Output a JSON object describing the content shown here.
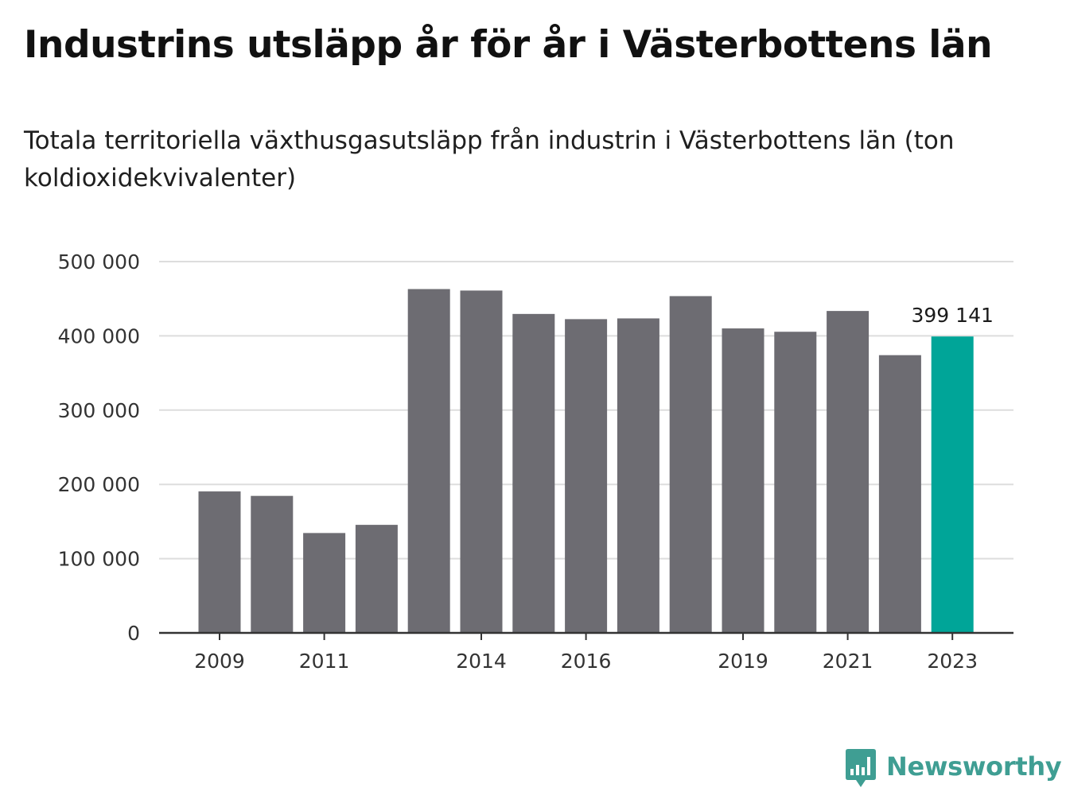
{
  "title": "Industrins utsläpp år för år i Västerbottens län",
  "subtitle": "Totala territoriella växthusgasutsläpp från industrin i Västerbottens län (ton koldioxidekvivalenter)",
  "brand": {
    "name": "Newsworthy",
    "color": "#3f9e93",
    "icon": "bar-chart-speech-bubble-icon"
  },
  "colors": {
    "bar": "#6d6c72",
    "highlight": "#00a598",
    "grid": "#dddddd",
    "axis": "#333333"
  },
  "chart_data": {
    "type": "bar",
    "title": "",
    "xlabel": "",
    "ylabel": "",
    "categories": [
      "2009",
      "2010",
      "2011",
      "2012",
      "2013",
      "2014",
      "2015",
      "2016",
      "2017",
      "2018",
      "2019",
      "2020",
      "2021",
      "2022",
      "2023"
    ],
    "values": [
      190500,
      184500,
      134500,
      145500,
      463000,
      461000,
      429500,
      422500,
      423500,
      453500,
      410000,
      405500,
      433500,
      374000,
      399141
    ],
    "highlight_index": 14,
    "value_label": "399 141",
    "x_tick_labels": [
      "2009",
      "2011",
      "2014",
      "2016",
      "2019",
      "2021",
      "2023"
    ],
    "y_ticks": [
      0,
      100000,
      200000,
      300000,
      400000,
      500000
    ],
    "y_tick_labels": [
      "0",
      "100 000",
      "200 000",
      "300 000",
      "400 000",
      "500 000"
    ],
    "ylim": [
      0,
      500000
    ],
    "grid": true,
    "legend": "none"
  }
}
